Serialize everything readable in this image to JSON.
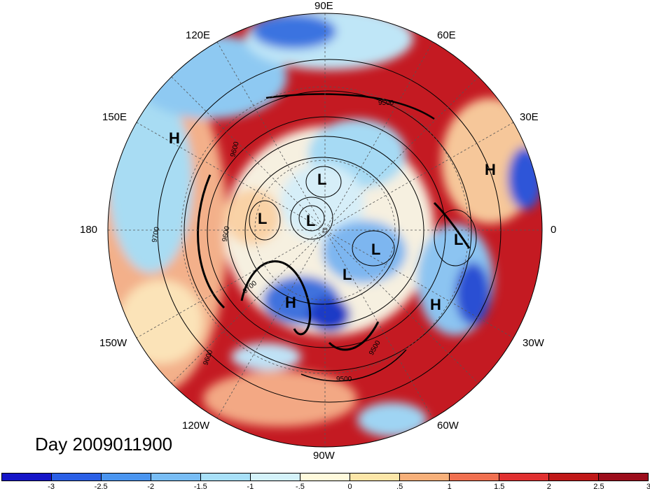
{
  "title": "Day 2009011900",
  "lon_labels": {
    "e90": "90E",
    "e120": "120E",
    "e60": "60E",
    "e150": "150E",
    "e30": "30E",
    "w180": "180",
    "zero": "0",
    "w150": "150W",
    "w30": "30W",
    "w120": "120W",
    "w60": "60W",
    "w90": "90W"
  },
  "pressure_markers": {
    "highs": [
      "H",
      "H",
      "H",
      "H"
    ],
    "lows": [
      "L",
      "L",
      "L",
      "L",
      "L",
      "L"
    ]
  },
  "contour_labels": [
    "9500",
    "9600",
    "9700",
    "9500",
    "9500",
    "9600",
    "9600",
    "9700"
  ],
  "colorbar": {
    "colors": [
      "#1515c8",
      "#2a5fe6",
      "#4a95f0",
      "#78bdf5",
      "#a8e0f8",
      "#d4f2fa",
      "#fffadc",
      "#fce6a8",
      "#f7b07a",
      "#f07050",
      "#e03030",
      "#c01818",
      "#9c0d1c"
    ],
    "ticks": [
      "-3",
      "-2.5",
      "-2",
      "-1.5",
      "-1",
      "-.5",
      "0",
      ".5",
      "1",
      "1.5",
      "2",
      "2.5",
      "3"
    ]
  }
}
